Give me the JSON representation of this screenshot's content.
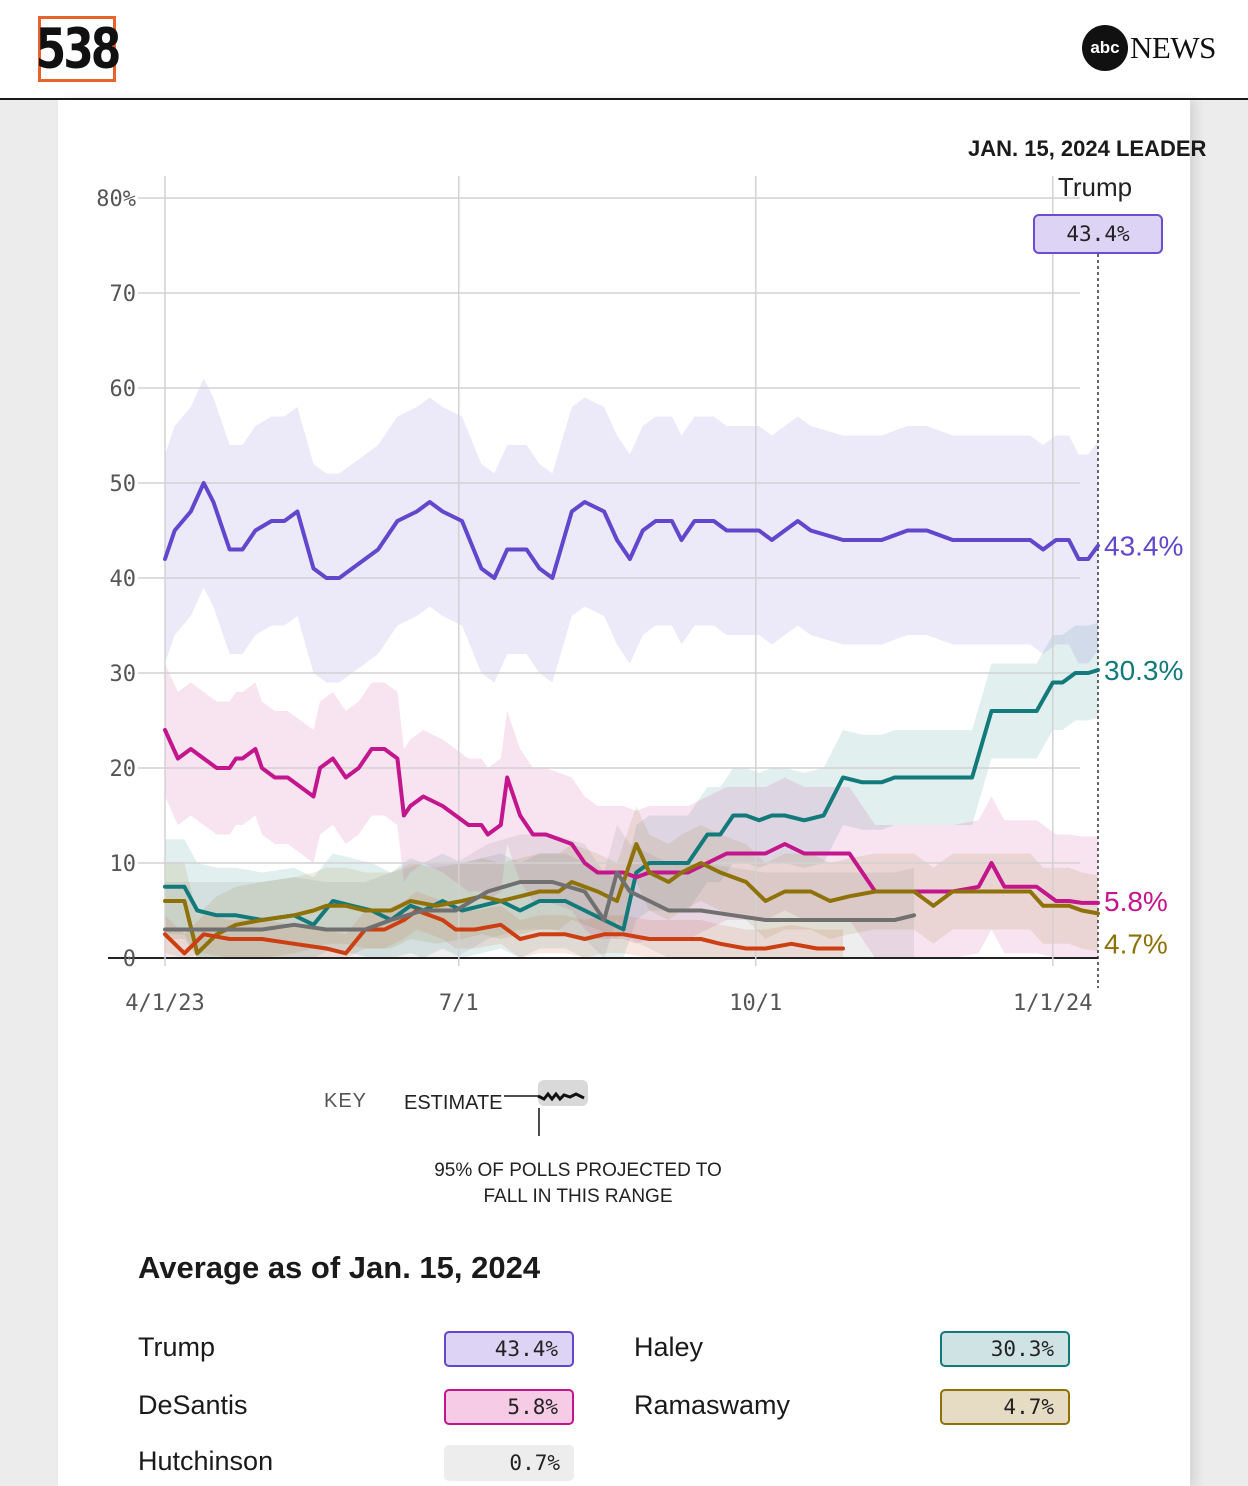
{
  "header": {
    "brand_538": "538",
    "brand_abc": "abc",
    "brand_news": "NEWS"
  },
  "leader": {
    "heading": "JAN. 15, 2024 LEADER",
    "name": "Trump",
    "value": "43.4%"
  },
  "colors": {
    "trump": "#6246cc",
    "haley": "#127a7a",
    "desantis": "#c4168c",
    "ramaswamy": "#8e7208",
    "hutchinson": "#cc3f12",
    "others": "#707070"
  },
  "chart_data": {
    "type": "line",
    "title": "",
    "xlabel": "",
    "ylabel": "",
    "x_range": [
      0,
      289
    ],
    "ylim": [
      0,
      80
    ],
    "y_ticks": [
      0,
      10,
      20,
      30,
      40,
      50,
      60,
      70,
      80
    ],
    "y_tick_labels": [
      "0",
      "10",
      "20",
      "30",
      "40",
      "50",
      "60",
      "70",
      "80%"
    ],
    "x_ticks": [
      0,
      91,
      183,
      275
    ],
    "x_tick_labels": [
      "4/1/23",
      "7/1",
      "10/1",
      "1/1/24"
    ],
    "x_unit": "days since 4/1/23",
    "current_day": 289,
    "series": [
      {
        "name": "Trump",
        "color_key": "trump",
        "end_label": "43.4%",
        "x": [
          0,
          3,
          8,
          12,
          15,
          20,
          24,
          28,
          33,
          37,
          41,
          46,
          50,
          54,
          58,
          62,
          66,
          72,
          78,
          82,
          86,
          92,
          98,
          102,
          106,
          112,
          116,
          120,
          126,
          130,
          136,
          140,
          144,
          148,
          152,
          157,
          160,
          164,
          166,
          170,
          174,
          180,
          184,
          188,
          192,
          196,
          200,
          210,
          216,
          222,
          230,
          236,
          244,
          250,
          256,
          260,
          264,
          268,
          272,
          276,
          280,
          283,
          286,
          289
        ],
        "y": [
          42,
          45,
          47,
          50,
          48,
          43,
          43,
          45,
          46,
          46,
          47,
          41,
          40,
          40,
          41,
          42,
          43,
          46,
          47,
          48,
          47,
          46,
          41,
          40,
          43,
          43,
          41,
          40,
          47,
          48,
          47,
          44,
          42,
          45,
          46,
          46,
          44,
          46,
          46,
          46,
          45,
          45,
          45,
          44,
          45,
          46,
          45,
          44,
          44,
          44,
          45,
          45,
          44,
          44,
          44,
          44,
          44,
          44,
          43,
          44,
          44,
          42,
          42,
          43.4
        ]
      },
      {
        "name": "Haley",
        "color_key": "haley",
        "end_label": "30.3%",
        "x": [
          0,
          6,
          10,
          16,
          22,
          30,
          40,
          46,
          52,
          58,
          64,
          70,
          76,
          80,
          86,
          92,
          98,
          104,
          110,
          116,
          124,
          130,
          136,
          142,
          146,
          150,
          156,
          162,
          168,
          172,
          176,
          180,
          184,
          188,
          192,
          198,
          204,
          210,
          216,
          222,
          226,
          230,
          236,
          244,
          250,
          256,
          262,
          264,
          270,
          275,
          278,
          282,
          286,
          289
        ],
        "y": [
          7.5,
          7.5,
          5,
          4.5,
          4.5,
          4,
          4.5,
          3.5,
          6,
          5.5,
          5,
          4,
          5.5,
          5,
          6,
          5,
          5.5,
          6,
          5,
          6,
          6,
          5,
          4,
          3,
          9,
          10,
          10,
          10,
          13,
          13,
          15,
          15,
          14.5,
          15,
          15,
          14.5,
          15,
          19,
          18.5,
          18.5,
          19,
          19,
          19,
          19,
          19,
          26,
          26,
          26,
          26,
          29,
          29,
          30,
          30,
          30.3
        ]
      },
      {
        "name": "DeSantis",
        "color_key": "desantis",
        "end_label": "5.8%",
        "x": [
          0,
          4,
          8,
          12,
          16,
          20,
          22,
          24,
          28,
          30,
          34,
          38,
          42,
          46,
          48,
          52,
          56,
          60,
          64,
          68,
          72,
          74,
          76,
          80,
          86,
          90,
          94,
          98,
          100,
          104,
          106,
          110,
          114,
          118,
          122,
          126,
          130,
          134,
          138,
          142,
          146,
          150,
          156,
          162,
          168,
          174,
          180,
          186,
          192,
          198,
          204,
          212,
          220,
          228,
          236,
          244,
          252,
          256,
          260,
          266,
          270,
          276,
          280,
          284,
          289
        ],
        "y": [
          24,
          21,
          22,
          21,
          20,
          20,
          21,
          21,
          22,
          20,
          19,
          19,
          18,
          17,
          20,
          21,
          19,
          20,
          22,
          22,
          21,
          15,
          16,
          17,
          16,
          15,
          14,
          14,
          13,
          14,
          19,
          15,
          13,
          13,
          12.5,
          12,
          10,
          9,
          9,
          9,
          8.5,
          9,
          9,
          9,
          10,
          11,
          11,
          11,
          12,
          11,
          11,
          11,
          7,
          7,
          7,
          7,
          7.5,
          10,
          7.5,
          7.5,
          7.5,
          6,
          6,
          5.8,
          5.8
        ]
      },
      {
        "name": "Ramaswamy",
        "color_key": "ramaswamy",
        "end_label": "4.7%",
        "x": [
          0,
          6,
          10,
          16,
          22,
          30,
          40,
          46,
          50,
          56,
          62,
          70,
          76,
          84,
          92,
          98,
          104,
          110,
          116,
          122,
          126,
          134,
          140,
          146,
          150,
          156,
          160,
          166,
          172,
          180,
          186,
          192,
          200,
          206,
          212,
          220,
          226,
          232,
          238,
          244,
          252,
          256,
          260,
          264,
          268,
          272,
          276,
          280,
          284,
          289
        ],
        "y": [
          6,
          6,
          0.5,
          2.5,
          3.5,
          4,
          4.5,
          5,
          5.5,
          5.5,
          5,
          5,
          6,
          5.5,
          6,
          6.5,
          6,
          6.5,
          7,
          7,
          8,
          7,
          6,
          12,
          9,
          8,
          9,
          10,
          9,
          8,
          6,
          7,
          7,
          6,
          6.5,
          7,
          7,
          7,
          5.5,
          7,
          7,
          7,
          7,
          7,
          7,
          5.5,
          5.5,
          5.5,
          5,
          4.7
        ]
      },
      {
        "name": "Hutchinson",
        "color_key": "hutchinson",
        "end_label": "",
        "x": [
          0,
          6,
          12,
          20,
          30,
          40,
          50,
          56,
          62,
          68,
          74,
          78,
          86,
          90,
          96,
          104,
          110,
          116,
          124,
          130,
          136,
          142,
          150,
          158,
          166,
          172,
          180,
          186,
          194,
          202,
          210
        ],
        "y": [
          2.5,
          0.5,
          2.5,
          2,
          2,
          1.5,
          1,
          0.5,
          3,
          3,
          4,
          5,
          4,
          3,
          3,
          3.5,
          2,
          2.5,
          2.5,
          2,
          2.5,
          2.5,
          2,
          2,
          2,
          1.5,
          1,
          1,
          1.5,
          1,
          1
        ]
      },
      {
        "name": "Others",
        "color_key": "others",
        "end_label": "",
        "x": [
          0,
          10,
          20,
          30,
          40,
          50,
          56,
          62,
          70,
          80,
          90,
          100,
          110,
          120,
          130,
          136,
          140,
          144,
          150,
          156,
          166,
          176,
          186,
          196,
          206,
          216,
          226,
          232
        ],
        "y": [
          3,
          3,
          3,
          3,
          3.5,
          3,
          3,
          3,
          4,
          5,
          5,
          7,
          8,
          8,
          7,
          4,
          9,
          7,
          6,
          5,
          5,
          4.5,
          4,
          4,
          4,
          4,
          4,
          4.5
        ]
      }
    ],
    "key": {
      "title": "KEY",
      "estimate_label": "ESTIMATE",
      "range_label_line1": "95% OF POLLS PROJECTED TO",
      "range_label_line2": "FALL IN THIS RANGE"
    }
  },
  "average": {
    "title": "Average as of Jan. 15, 2024",
    "candidates": [
      {
        "name": "Trump",
        "value": "43.4%",
        "color_key": "trump"
      },
      {
        "name": "Haley",
        "value": "30.3%",
        "color_key": "haley"
      },
      {
        "name": "DeSantis",
        "value": "5.8%",
        "color_key": "desantis"
      },
      {
        "name": "Ramaswamy",
        "value": "4.7%",
        "color_key": "ramaswamy"
      },
      {
        "name": "Hutchinson",
        "value": "0.7%",
        "color_key": "others"
      }
    ]
  }
}
